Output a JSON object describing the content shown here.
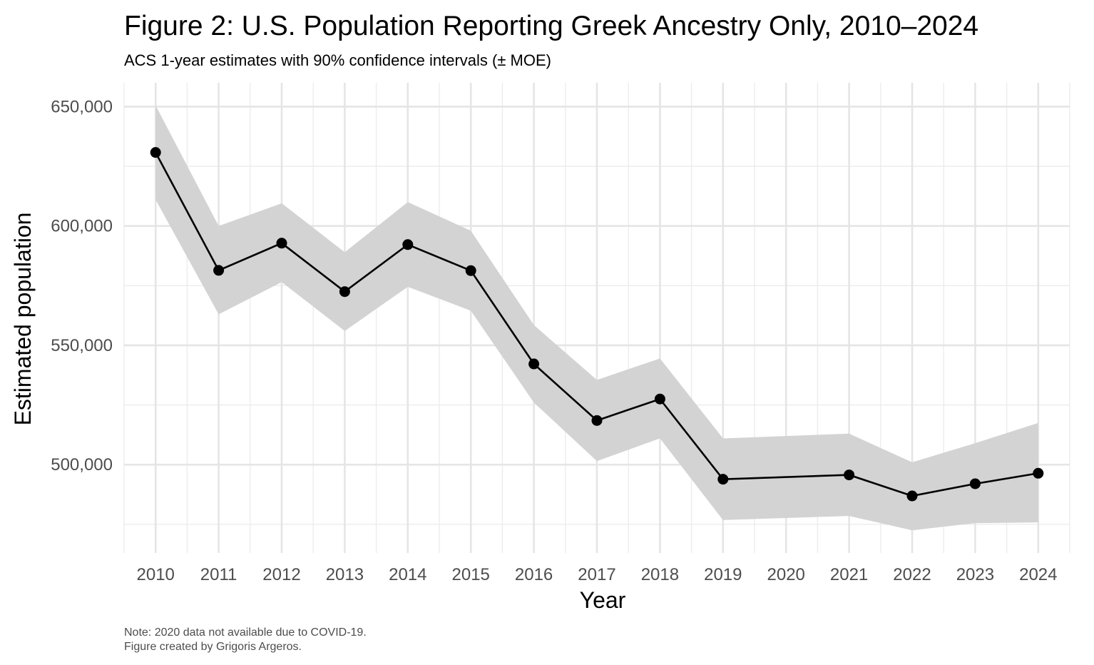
{
  "chart_data": {
    "type": "line",
    "title": "Figure 2: U.S. Population Reporting Greek Ancestry Only, 2010–2024",
    "subtitle": "ACS 1-year estimates with 90% confidence intervals (± MOE)",
    "xlabel": "Year",
    "ylabel": "Estimated population",
    "x": [
      2010,
      2011,
      2012,
      2013,
      2014,
      2015,
      2016,
      2017,
      2018,
      2019,
      2021,
      2022,
      2023,
      2024
    ],
    "y": [
      630800,
      581400,
      592800,
      572500,
      592200,
      581300,
      542200,
      518500,
      527500,
      493900,
      495700,
      486900,
      492000,
      496400
    ],
    "ci_lower": [
      611000,
      563000,
      576500,
      556000,
      574500,
      564500,
      526000,
      501500,
      511000,
      476800,
      478500,
      472500,
      475500,
      475800
    ],
    "ci_upper": [
      650500,
      600000,
      609500,
      589000,
      610000,
      598000,
      558500,
      535500,
      544500,
      511000,
      513000,
      501000,
      509000,
      517500
    ],
    "x_ticks": [
      "2010",
      "2011",
      "2012",
      "2013",
      "2014",
      "2015",
      "2016",
      "2017",
      "2018",
      "2019",
      "2020",
      "2021",
      "2022",
      "2023",
      "2024"
    ],
    "y_ticks": [
      "500,000",
      "550,000",
      "600,000",
      "650,000"
    ],
    "xlim": [
      2009.5,
      2024.5
    ],
    "ylim": [
      463000,
      660000
    ],
    "grid": true,
    "legend": "none",
    "line_color": "#000000",
    "ribbon_color": "#d3d3d3",
    "caption_lines": [
      "Note: 2020 data not available due to COVID-19.",
      "Figure created by Grigoris Argeros."
    ]
  }
}
